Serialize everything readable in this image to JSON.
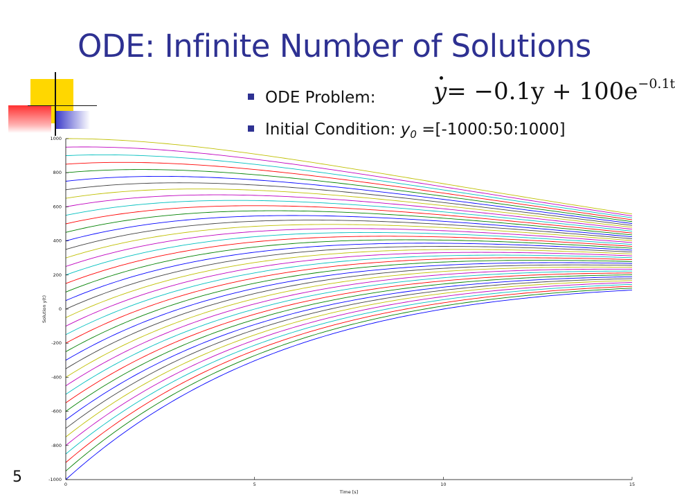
{
  "slide": {
    "title": "ODE: Infinite Number of Solutions",
    "page_number": "5",
    "bullets": [
      {
        "label": "ODE Problem:"
      },
      {
        "label": "Initial Condition: ",
        "var": "y",
        "sub": "0",
        "value": " =[-1000:50:1000]"
      }
    ],
    "equation": {
      "lhs": "y",
      "rhs": "= −0.1y + 100e",
      "exponent": "−0.1t"
    },
    "accent_color": "#2e3192"
  },
  "chart_data": {
    "type": "line",
    "title": "",
    "xlabel": "Time [s]",
    "ylabel": "Solution y(t)",
    "xlim": [
      0,
      15
    ],
    "ylim": [
      -1000,
      1000
    ],
    "x_ticks": [
      0,
      5,
      10,
      15
    ],
    "y_ticks": [
      -1000,
      -800,
      -600,
      -400,
      -200,
      0,
      200,
      400,
      600,
      800,
      1000
    ],
    "grid": false,
    "legend": "none",
    "ode": "dy/dt = -0.1*y + 100*exp(-0.1*t)",
    "initial_conditions": [
      -1000,
      -950,
      -900,
      -850,
      -800,
      -750,
      -700,
      -650,
      -600,
      -550,
      -500,
      -450,
      -400,
      -350,
      -300,
      -250,
      -200,
      -150,
      -100,
      -50,
      0,
      50,
      100,
      150,
      200,
      250,
      300,
      350,
      400,
      450,
      500,
      550,
      600,
      650,
      700,
      750,
      800,
      850,
      900,
      950,
      1000
    ],
    "x": [
      0,
      1.5,
      3,
      4.5,
      6,
      7.5,
      9,
      10.5,
      12,
      13.5,
      15
    ],
    "series_colors": [
      "#0000ff",
      "#008000",
      "#ff0000",
      "#00bfbf",
      "#bf00bf",
      "#bfbf00",
      "#404040"
    ]
  }
}
